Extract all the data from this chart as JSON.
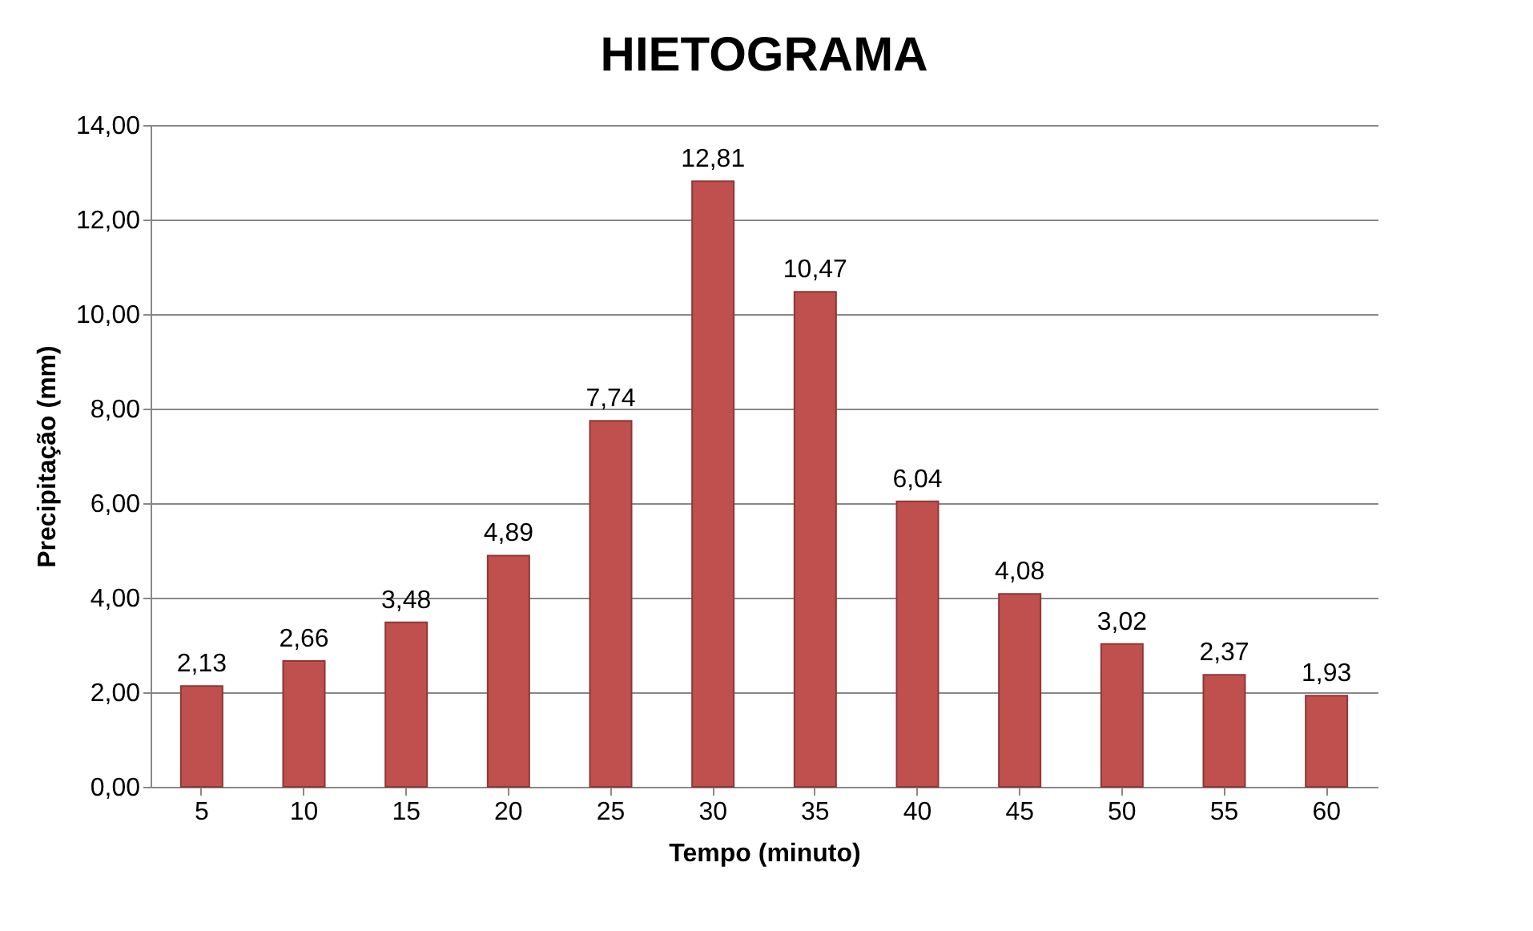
{
  "chart_data": {
    "type": "bar",
    "title": "HIETOGRAMA",
    "xlabel": "Tempo (minuto)",
    "ylabel": "Precipitação (mm)",
    "categories": [
      "5",
      "10",
      "15",
      "20",
      "25",
      "30",
      "35",
      "40",
      "45",
      "50",
      "55",
      "60"
    ],
    "values": [
      2.13,
      2.66,
      3.48,
      4.89,
      7.74,
      12.81,
      10.47,
      6.04,
      4.08,
      3.02,
      2.37,
      1.93
    ],
    "value_labels": [
      "2,13",
      "2,66",
      "3,48",
      "4,89",
      "7,74",
      "12,81",
      "10,47",
      "6,04",
      "4,08",
      "3,02",
      "2,37",
      "1,93"
    ],
    "color": "#c0504d",
    "ylim": [
      0,
      14
    ],
    "yticks": [
      {
        "value": 0,
        "label": "0,00"
      },
      {
        "value": 2,
        "label": "2,00"
      },
      {
        "value": 4,
        "label": "4,00"
      },
      {
        "value": 6,
        "label": "6,00"
      },
      {
        "value": 8,
        "label": "8,00"
      },
      {
        "value": 10,
        "label": "10,00"
      },
      {
        "value": 12,
        "label": "12,00"
      },
      {
        "value": 14,
        "label": "14,00"
      }
    ],
    "grid": "y"
  }
}
